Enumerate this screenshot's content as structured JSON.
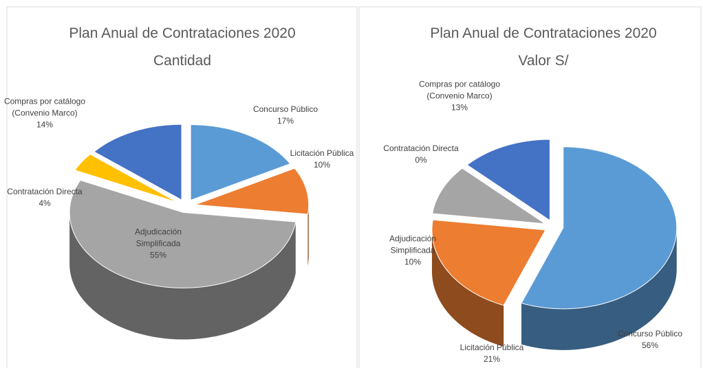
{
  "chart_data": [
    {
      "type": "pie3d",
      "title": "Plan Anual de Contrataciones 2020",
      "subtitle": "Cantidad",
      "categories": [
        "Concurso Público",
        "Licitación Pública",
        "Adjudicación Simplificada",
        "Contratación Directa",
        "Compras por catálogo (Convenio Marco)"
      ],
      "values": [
        17,
        10,
        55,
        4,
        14
      ],
      "value_labels": [
        "17%",
        "10%",
        "55%",
        "4%",
        "14%"
      ],
      "colors": [
        "#5b9bd5",
        "#ed7d31",
        "#a5a5a5",
        "#ffc000",
        "#4472c4"
      ]
    },
    {
      "type": "pie3d",
      "title": "Plan Anual de Contrataciones 2020",
      "subtitle": "Valor S/",
      "categories": [
        "Concurso Público",
        "Licitación Pública",
        "Adjudicación Simplificada",
        "Contratación Directa",
        "Compras por catálogo (Convenio Marco)"
      ],
      "values": [
        56,
        21,
        10,
        0,
        13
      ],
      "value_labels": [
        "56%",
        "21%",
        "10%",
        "0%",
        "13%"
      ],
      "colors": [
        "#5b9bd5",
        "#ed7d31",
        "#a5a5a5",
        "#ffc000",
        "#4472c4"
      ]
    }
  ]
}
